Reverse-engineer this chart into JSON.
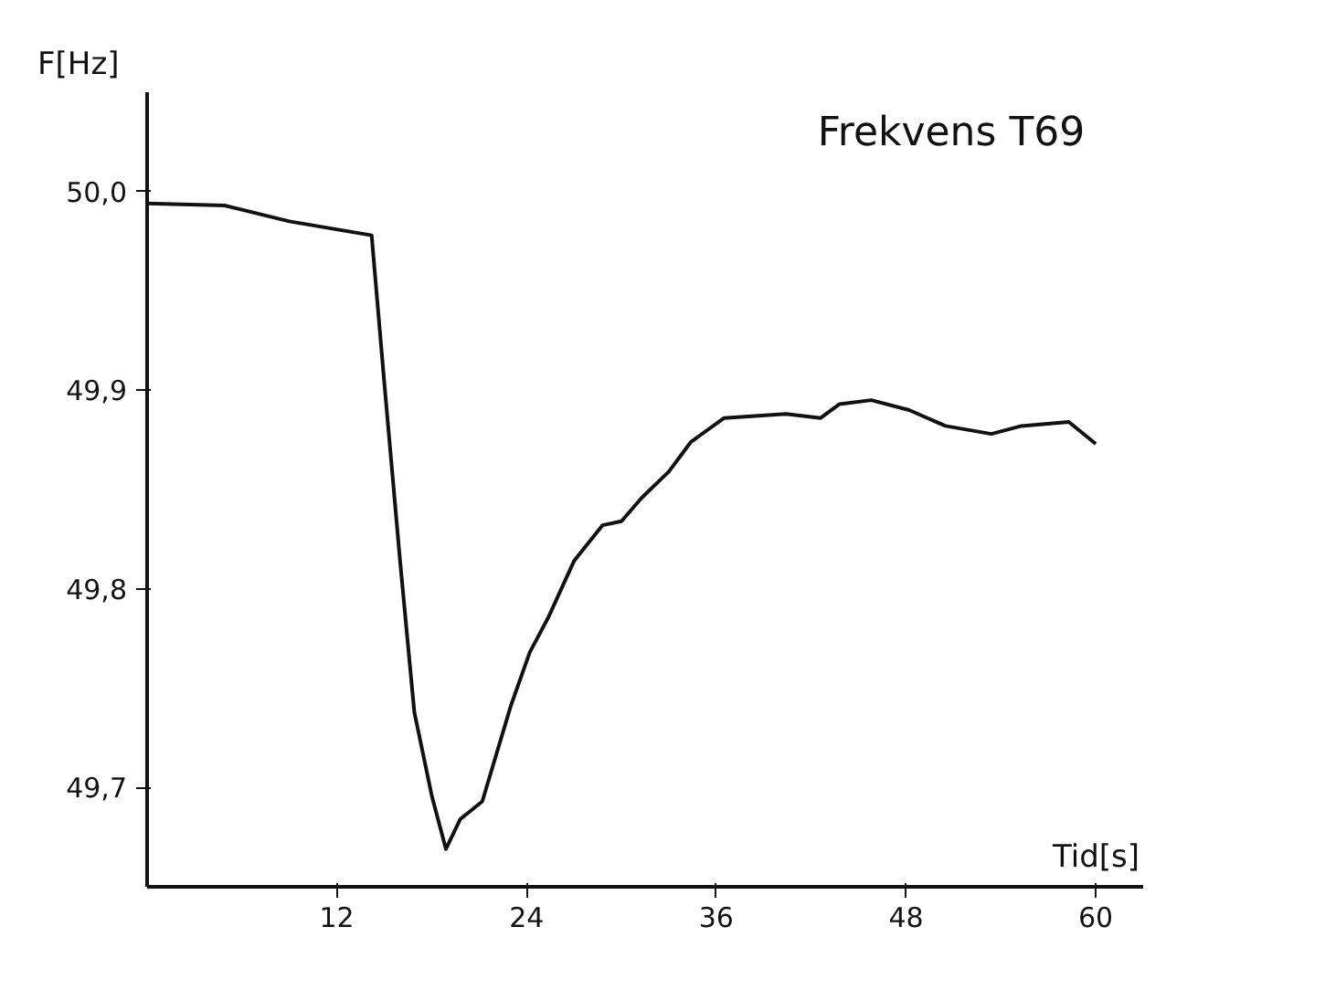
{
  "chart_data": {
    "type": "line",
    "title": "Frekvens T69",
    "xlabel": "Tid[s]",
    "ylabel": "F[Hz]",
    "x": [
      0,
      4.9,
      9,
      14.2,
      15.0,
      16,
      16.9,
      18,
      18.9,
      19.8,
      21.2,
      23,
      24.2,
      25.4,
      27,
      28.8,
      30,
      31.3,
      33,
      34.4,
      36.5,
      40.4,
      42.6,
      43.8,
      45.8,
      48.2,
      50.5,
      53.4,
      55.3,
      58.3,
      60
    ],
    "series": [
      {
        "color": "#111111",
        "values": [
          49.994,
          49.993,
          49.985,
          49.978,
          49.904,
          49.814,
          49.738,
          49.696,
          49.669,
          49.684,
          49.693,
          49.741,
          49.768,
          49.786,
          49.814,
          49.832,
          49.834,
          49.846,
          49.859,
          49.874,
          49.886,
          49.888,
          49.886,
          49.893,
          49.895,
          49.89,
          49.882,
          49.878,
          49.882,
          49.884,
          49.873
        ]
      }
    ],
    "xlim": [
      0,
      63
    ],
    "ylim": [
      49.65,
      50.05
    ],
    "xticks": [
      12,
      24,
      36,
      48,
      60
    ],
    "yticks": [
      {
        "value": 50.0,
        "label": "50,0"
      },
      {
        "value": 49.9,
        "label": "49,9"
      },
      {
        "value": 49.8,
        "label": "49,8"
      },
      {
        "value": 49.7,
        "label": "49,7"
      }
    ],
    "grid": false
  }
}
